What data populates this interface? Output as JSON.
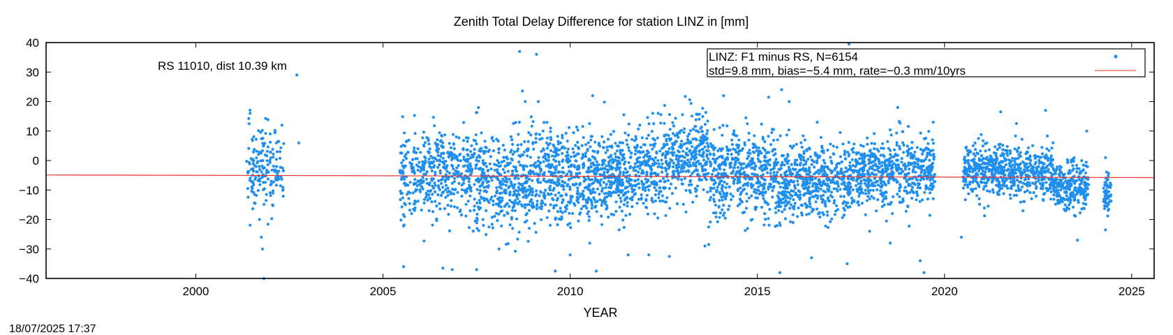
{
  "footer_timestamp": "18/07/2025 17:37",
  "colors": {
    "points": "#1f8fef",
    "fit_line": "#e8302e",
    "frame": "#000000"
  },
  "chart_data": {
    "type": "scatter",
    "title": "Zenith Total Delay Difference for station LINZ in [mm]",
    "xlabel": "YEAR",
    "ylabel": "",
    "xlim": [
      1996,
      2025.6
    ],
    "ylim": [
      -40,
      40
    ],
    "x_ticks": [
      2000,
      2005,
      2010,
      2015,
      2020,
      2025
    ],
    "x_tick_labels": [
      "2000",
      "2005",
      "2010",
      "2015",
      "2020",
      "2025"
    ],
    "y_ticks": [
      -40,
      -30,
      -20,
      -10,
      0,
      10,
      20,
      30,
      40
    ],
    "y_tick_labels": [
      "−40",
      "−30",
      "−20",
      "−10",
      "0",
      "10",
      "20",
      "30",
      "40"
    ],
    "grid": false,
    "annotation": "RS 11010, dist 10.39 km",
    "legend": {
      "placement": "top-right",
      "line1": "LINZ: F1 minus RS, N=6154",
      "line2": "std=9.8 mm, bias=−5.4 mm, rate=−0.3 mm/10yrs"
    },
    "series": [
      {
        "name": "LINZ: F1 minus RS, N=6154",
        "kind": "points",
        "segments": [
          {
            "start": 2001.35,
            "end": 2002.35,
            "center": -2.0,
            "spread": 7.0,
            "n": 170
          },
          {
            "start": 2005.45,
            "end": 2007.3,
            "center": -4.0,
            "spread": 7.5,
            "n": 400
          },
          {
            "start": 2007.3,
            "end": 2009.0,
            "center": -7.0,
            "spread": 8.0,
            "n": 420
          },
          {
            "start": 2009.0,
            "end": 2011.0,
            "center": -5.0,
            "spread": 7.5,
            "n": 520
          },
          {
            "start": 2011.0,
            "end": 2012.5,
            "center": -3.5,
            "spread": 7.0,
            "n": 400
          },
          {
            "start": 2012.5,
            "end": 2013.7,
            "center": 1.0,
            "spread": 6.5,
            "n": 320
          },
          {
            "start": 2013.7,
            "end": 2015.5,
            "center": -5.0,
            "spread": 7.0,
            "n": 470
          },
          {
            "start": 2015.5,
            "end": 2017.5,
            "center": -7.0,
            "spread": 6.5,
            "n": 520
          },
          {
            "start": 2017.5,
            "end": 2019.75,
            "center": -4.0,
            "spread": 5.5,
            "n": 560
          },
          {
            "start": 2020.5,
            "end": 2022.9,
            "center": -3.5,
            "spread": 4.5,
            "n": 600
          },
          {
            "start": 2022.9,
            "end": 2023.85,
            "center": -9.0,
            "spread": 4.0,
            "n": 260
          },
          {
            "start": 2024.25,
            "end": 2024.45,
            "center": -11.0,
            "spread": 4.0,
            "n": 60
          }
        ],
        "outliers": [
          {
            "x": 2001.45,
            "y": 16.0
          },
          {
            "x": 2001.7,
            "y": -20.0
          },
          {
            "x": 2001.75,
            "y": -26.0
          },
          {
            "x": 2001.78,
            "y": -30.0
          },
          {
            "x": 2001.82,
            "y": -40.0
          },
          {
            "x": 2002.3,
            "y": 12.0
          },
          {
            "x": 2002.7,
            "y": 29.0
          },
          {
            "x": 2002.75,
            "y": 6.0
          },
          {
            "x": 2005.55,
            "y": -36.0
          },
          {
            "x": 2006.6,
            "y": -36.5
          },
          {
            "x": 2006.85,
            "y": -37.0
          },
          {
            "x": 2007.55,
            "y": 18.0
          },
          {
            "x": 2007.5,
            "y": -37.0
          },
          {
            "x": 2008.1,
            "y": -30.0
          },
          {
            "x": 2008.65,
            "y": 37.0
          },
          {
            "x": 2008.8,
            "y": 20.0
          },
          {
            "x": 2009.1,
            "y": 36.0
          },
          {
            "x": 2009.15,
            "y": 20.0
          },
          {
            "x": 2009.6,
            "y": -37.5
          },
          {
            "x": 2010.0,
            "y": -32.0
          },
          {
            "x": 2010.6,
            "y": 22.0
          },
          {
            "x": 2010.7,
            "y": -37.5
          },
          {
            "x": 2011.55,
            "y": -32.0
          },
          {
            "x": 2012.1,
            "y": -32.0
          },
          {
            "x": 2012.65,
            "y": -32.5
          },
          {
            "x": 2012.35,
            "y": 16.0
          },
          {
            "x": 2013.6,
            "y": -29.0
          },
          {
            "x": 2013.7,
            "y": -28.5
          },
          {
            "x": 2013.9,
            "y": 30.0
          },
          {
            "x": 2014.1,
            "y": 22.0
          },
          {
            "x": 2015.3,
            "y": 21.5
          },
          {
            "x": 2015.65,
            "y": 24.0
          },
          {
            "x": 2015.85,
            "y": 20.0
          },
          {
            "x": 2015.6,
            "y": -38.0
          },
          {
            "x": 2016.45,
            "y": -33.0
          },
          {
            "x": 2016.6,
            "y": 13.0
          },
          {
            "x": 2017.4,
            "y": -35.0
          },
          {
            "x": 2017.45,
            "y": 39.5
          },
          {
            "x": 2018.0,
            "y": -24.0
          },
          {
            "x": 2018.55,
            "y": -28.0
          },
          {
            "x": 2018.75,
            "y": 18.0
          },
          {
            "x": 2019.35,
            "y": -34.0
          },
          {
            "x": 2019.45,
            "y": -38.0
          },
          {
            "x": 2019.7,
            "y": 13.0
          },
          {
            "x": 2020.45,
            "y": -26.0
          },
          {
            "x": 2021.5,
            "y": 16.5
          },
          {
            "x": 2022.7,
            "y": 17.0
          },
          {
            "x": 2023.55,
            "y": -27.0
          },
          {
            "x": 2023.8,
            "y": 10.0
          },
          {
            "x": 2024.3,
            "y": -23.5
          },
          {
            "x": 2024.3,
            "y": 1.0
          }
        ]
      },
      {
        "name": "fit",
        "kind": "line",
        "x": [
          1996,
          2025.6
        ],
        "y": [
          -4.9,
          -5.8
        ]
      }
    ]
  }
}
